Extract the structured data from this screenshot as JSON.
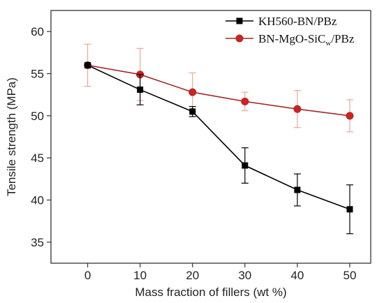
{
  "chart_data": {
    "type": "line",
    "xlabel": "Mass fraction of fillers (wt %)",
    "ylabel": "Tensile strength (MPa)",
    "x": [
      0,
      10,
      20,
      30,
      40,
      50
    ],
    "xlim": [
      -7,
      54
    ],
    "ylim": [
      32.5,
      62.5
    ],
    "x_ticks": [
      "0",
      "10",
      "20",
      "30",
      "40",
      "50"
    ],
    "y_ticks": [
      "35",
      "40",
      "45",
      "50",
      "55",
      "60"
    ],
    "grid": false,
    "legend_position": "top-right",
    "series": [
      {
        "name": "KH560-BN/PBz",
        "legend_main": "KH560-BN/PBz",
        "color": "#000000",
        "marker": "square",
        "values": [
          56.0,
          53.1,
          50.5,
          44.1,
          41.2,
          38.9
        ],
        "errors": [
          0.0,
          1.8,
          0.6,
          2.1,
          1.9,
          2.9
        ]
      },
      {
        "name": "BN-MgO-SiCw/PBz",
        "legend_main": "BN-MgO-SiC",
        "legend_sub": "w",
        "legend_tail": "/PBz",
        "color": "#a52a2a",
        "marker": "circle",
        "error_color": "#e8a898",
        "values": [
          56.0,
          54.9,
          52.8,
          51.7,
          50.8,
          50.0
        ],
        "errors": [
          2.5,
          3.1,
          2.3,
          1.1,
          2.2,
          1.9
        ]
      }
    ]
  }
}
